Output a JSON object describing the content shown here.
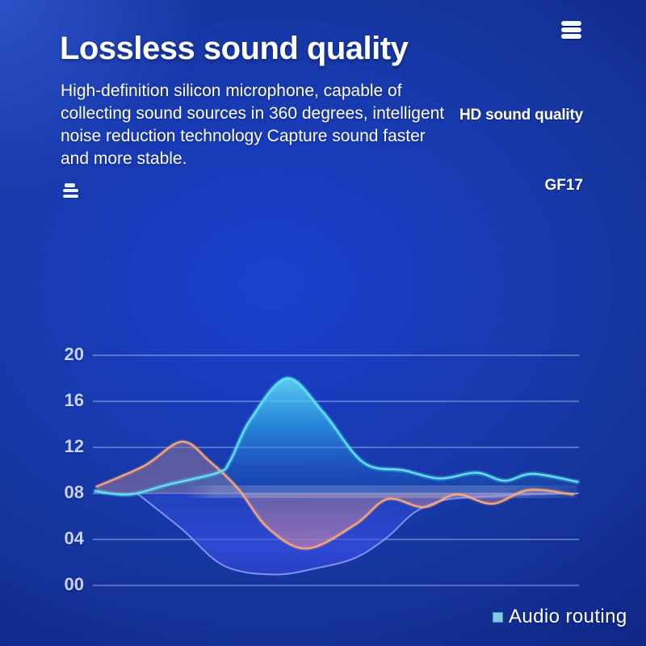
{
  "header": {
    "title": "Lossless sound quality",
    "description_lines": [
      "High-definition silicon microphone, capable of",
      "collecting sound sources in 360 degrees, intelligent",
      "noise reduction technology Capture sound faster",
      "and more stable."
    ],
    "hd_badge": "HD sound quality",
    "model": "GF17"
  },
  "icons": {
    "top_right": "menu-icon",
    "body_left": "list-icon"
  },
  "colors": {
    "background_center": "#1a41cf",
    "background_edge": "#0d2280",
    "background_corner_glow": "#4673ff",
    "axis_text": "#c8d3f2",
    "gridline": "rgba(178,198,242,0.55)",
    "wave_cyan": "#5fe7fa",
    "wave_orange": "#ffaa78",
    "wave_blue": "#8d9af5",
    "legend_swatch": "#7ec8e8"
  },
  "chart_data": {
    "type": "area",
    "title": "",
    "xlabel": "",
    "ylabel": "",
    "ylim": [
      0,
      20
    ],
    "yticks": [
      "20",
      "16",
      "12",
      "08",
      "04",
      "00"
    ],
    "xticks": [],
    "grid": true,
    "baseline": 8,
    "legend": [
      {
        "label": "Audio routing",
        "color": "#7ec8e8",
        "position": "bottom-right"
      }
    ],
    "band": {
      "x_from": 19.0,
      "x_to": 99.7,
      "v_top": 8.7,
      "v_bottom": 7.6
    },
    "series": [
      {
        "name": "bass-wave",
        "color": "#8d9af5",
        "points": [
          [
            9.1,
            8.0
          ],
          [
            18.3,
            4.9
          ],
          [
            27.0,
            1.7
          ],
          [
            37.4,
            0.95
          ],
          [
            46.0,
            1.5
          ],
          [
            54.0,
            2.4
          ],
          [
            60.6,
            4.2
          ],
          [
            66.0,
            6.3
          ],
          [
            72.0,
            7.4
          ],
          [
            80.0,
            7.7
          ],
          [
            88.0,
            7.9
          ],
          [
            99.7,
            8.0
          ]
        ]
      },
      {
        "name": "mid-wave",
        "color": "#ffaa78",
        "points": [
          [
            0.8,
            8.6
          ],
          [
            10.6,
            10.4
          ],
          [
            18.3,
            12.5
          ],
          [
            24.0,
            10.8
          ],
          [
            29.9,
            8.4
          ],
          [
            36.0,
            5.0
          ],
          [
            44.0,
            3.2
          ],
          [
            54.0,
            5.3
          ],
          [
            60.6,
            7.5
          ],
          [
            68.1,
            6.8
          ],
          [
            74.8,
            7.9
          ],
          [
            82.2,
            7.1
          ],
          [
            89.7,
            8.3
          ],
          [
            98.8,
            7.9
          ]
        ]
      },
      {
        "name": "treble-wave",
        "color": "#5fe7fa",
        "points": [
          [
            0.5,
            8.2
          ],
          [
            7.5,
            7.9
          ],
          [
            15.8,
            8.8
          ],
          [
            25.7,
            9.8
          ],
          [
            28.2,
            10.8
          ],
          [
            32.4,
            14.4
          ],
          [
            39.9,
            18.0
          ],
          [
            47.3,
            15.1
          ],
          [
            55.6,
            10.7
          ],
          [
            64.0,
            10.0
          ],
          [
            71.4,
            9.3
          ],
          [
            78.9,
            9.8
          ],
          [
            84.7,
            9.1
          ],
          [
            90.5,
            9.7
          ],
          [
            99.7,
            9.0
          ]
        ]
      }
    ]
  }
}
